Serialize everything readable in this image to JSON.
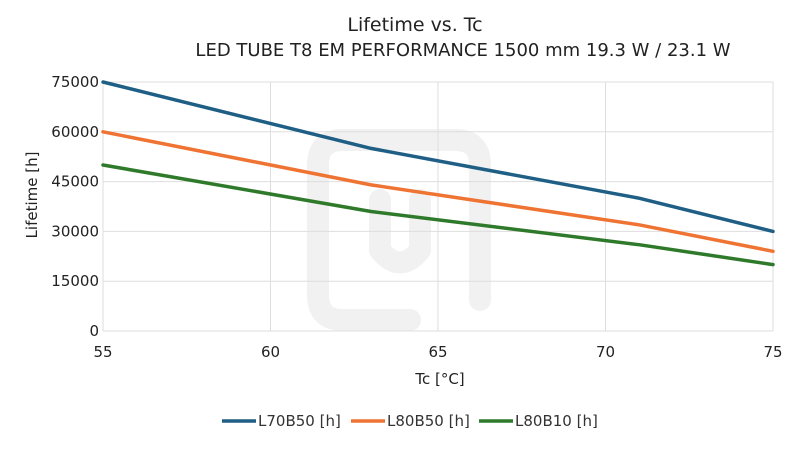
{
  "chart_data": {
    "type": "line",
    "title": "Lifetime vs. Tc",
    "subtitle": "LED TUBE T8 EM PERFORMANCE 1500 mm 19.3 W / 23.1 W",
    "xlabel": "Tc [°C]",
    "ylabel": "Lifetime [h]",
    "xlim": [
      55,
      75
    ],
    "ylim": [
      0,
      75000
    ],
    "x_ticks": [
      55,
      60,
      65,
      70,
      75
    ],
    "y_ticks": [
      0,
      15000,
      30000,
      45000,
      60000,
      75000
    ],
    "grid": true,
    "legend_position": "bottom",
    "series": [
      {
        "name": "L70B50 [h]",
        "color": "#1f5f86",
        "x": [
          55,
          63,
          71,
          75
        ],
        "y": [
          75000,
          55000,
          40000,
          30000
        ]
      },
      {
        "name": "L80B50 [h]",
        "color": "#ef7433",
        "x": [
          55,
          63,
          71,
          75
        ],
        "y": [
          60000,
          44000,
          32000,
          24000
        ]
      },
      {
        "name": "L80B10 [h]",
        "color": "#2f7a2a",
        "x": [
          55,
          63,
          71,
          75
        ],
        "y": [
          50000,
          36000,
          26000,
          20000
        ]
      }
    ]
  }
}
